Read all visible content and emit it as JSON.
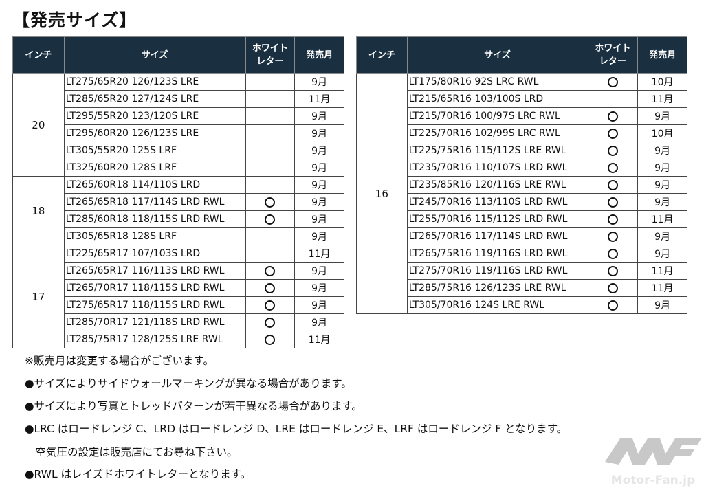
{
  "title": "【発売サイズ】",
  "headers": {
    "inch": "インチ",
    "size": "サイズ",
    "white_letter": "ホワイトレター",
    "release": "発売月"
  },
  "left_table": [
    {
      "inch": "20",
      "rows": [
        {
          "size": "LT275/65R20 126/123S  LRE",
          "white": false,
          "month": "9月"
        },
        {
          "size": "LT285/65R20 127/124S  LRE",
          "white": false,
          "month": "11月"
        },
        {
          "size": "LT295/55R20 123/120S  LRE",
          "white": false,
          "month": "9月"
        },
        {
          "size": "LT295/60R20 126/123S  LRE",
          "white": false,
          "month": "9月"
        },
        {
          "size": "LT305/55R20 125S  LRF",
          "white": false,
          "month": "9月"
        },
        {
          "size": "LT325/60R20 128S  LRF",
          "white": false,
          "month": "9月"
        }
      ]
    },
    {
      "inch": "18",
      "rows": [
        {
          "size": "LT265/60R18 114/110S  LRD",
          "white": false,
          "month": "9月"
        },
        {
          "size": "LT265/65R18 117/114S  LRD RWL",
          "white": true,
          "month": "9月"
        },
        {
          "size": "LT285/60R18 118/115S  LRD RWL",
          "white": true,
          "month": "9月"
        },
        {
          "size": "LT305/65R18 128S  LRF",
          "white": false,
          "month": "9月"
        }
      ]
    },
    {
      "inch": "17",
      "rows": [
        {
          "size": "LT225/65R17 107/103S  LRD",
          "white": false,
          "month": "11月"
        },
        {
          "size": "LT265/65R17 116/113S  LRD RWL",
          "white": true,
          "month": "9月"
        },
        {
          "size": "LT265/70R17 118/115S LRD  RWL",
          "white": true,
          "month": "9月"
        },
        {
          "size": "LT275/65R17 118/115S  LRD RWL",
          "white": true,
          "month": "9月"
        },
        {
          "size": "LT285/70R17 121/118S  LRD RWL",
          "white": true,
          "month": "9月"
        },
        {
          "size": "LT285/75R17 128/125S  LRE RWL",
          "white": true,
          "month": "11月"
        }
      ]
    }
  ],
  "right_table": [
    {
      "inch": "16",
      "rows": [
        {
          "size": "LT175/80R16 92S  LRC RWL",
          "white": true,
          "month": "10月"
        },
        {
          "size": "LT215/65R16 103/100S  LRD",
          "white": false,
          "month": "11月"
        },
        {
          "size": "LT215/70R16 100/97S  LRC RWL",
          "white": true,
          "month": "9月"
        },
        {
          "size": "LT225/70R16 102/99S  LRC RWL",
          "white": true,
          "month": "10月"
        },
        {
          "size": "LT225/75R16 115/112S  LRE RWL",
          "white": true,
          "month": "9月"
        },
        {
          "size": "LT235/70R16 110/107S  LRD RWL",
          "white": true,
          "month": "9月"
        },
        {
          "size": "LT235/85R16 120/116S  LRE RWL",
          "white": true,
          "month": "9月"
        },
        {
          "size": "LT245/70R16 113/110S  LRD RWL",
          "white": true,
          "month": "9月"
        },
        {
          "size": "LT255/70R16 115/112S  LRD RWL",
          "white": true,
          "month": "11月"
        },
        {
          "size": "LT265/70R16 117/114S  LRD RWL",
          "white": true,
          "month": "9月"
        },
        {
          "size": "LT265/75R16 119/116S  LRD RWL",
          "white": true,
          "month": "9月"
        },
        {
          "size": "LT275/70R16 119/116S  LRD RWL",
          "white": true,
          "month": "11月"
        },
        {
          "size": "LT285/75R16 126/123S  LRE RWL",
          "white": true,
          "month": "11月"
        },
        {
          "size": "LT305/70R16 124S  LRE RWL",
          "white": true,
          "month": "9月"
        }
      ]
    }
  ],
  "notes": [
    "※販売月は変更する場合がございます。",
    "●サイズによりサイドウォールマーキングが異なる場合があります。",
    "●サイズにより写真とトレッドパターンが若干異なる場合があります。",
    "●LRC はロードレンジ C、LRD はロードレンジ D、LRE はロードレンジ E、LRF はロードレンジ F となります。",
    "　空気圧の設定は販売店にてお尋ね下さい。",
    "●RWL はレイズドホワイトレターとなります。"
  ],
  "watermark": "Motor-Fan.jp",
  "colors": {
    "header_bg": "#1a3040",
    "logo": "#c8c8c8"
  }
}
